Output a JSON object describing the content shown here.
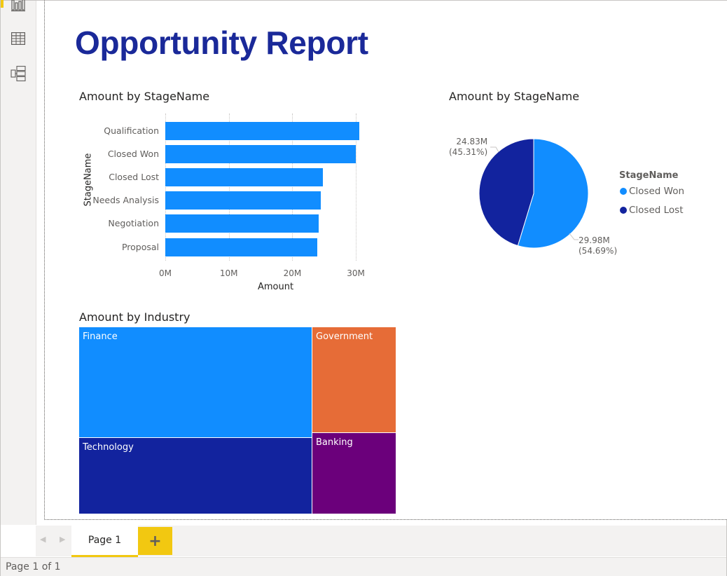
{
  "report": {
    "title": "Opportunity Report"
  },
  "rail": {
    "items": [
      {
        "name": "report-view",
        "icon": "bar-chart-icon",
        "active": true
      },
      {
        "name": "data-view",
        "icon": "table-grid-icon",
        "active": false
      },
      {
        "name": "model-view",
        "icon": "model-diagram-icon",
        "active": false
      }
    ]
  },
  "bar_chart": {
    "title": "Amount by StageName",
    "y_axis_title": "StageName",
    "x_axis_title": "Amount",
    "x_ticks": [
      "0M",
      "10M",
      "20M",
      "30M"
    ],
    "bar_color": "#118dff"
  },
  "pie_chart": {
    "title": "Amount by StageName",
    "legend_title": "StageName",
    "slices": [
      {
        "name": "Closed Won",
        "value_label": "29.98M",
        "pct_label": "(54.69%)",
        "color": "#118dff"
      },
      {
        "name": "Closed Lost",
        "value_label": "24.83M",
        "pct_label": "(45.31%)",
        "color": "#12239e"
      }
    ]
  },
  "treemap": {
    "title": "Amount by Industry",
    "tiles": [
      {
        "name": "Finance",
        "color": "#118dff"
      },
      {
        "name": "Technology",
        "color": "#12239e"
      },
      {
        "name": "Government",
        "color": "#e66c37"
      },
      {
        "name": "Banking",
        "color": "#6b007b"
      }
    ]
  },
  "chart_data": [
    {
      "type": "bar",
      "title": "Amount by StageName",
      "xlabel": "Amount",
      "ylabel": "StageName",
      "orientation": "horizontal",
      "categories": [
        "Qualification",
        "Closed Won",
        "Closed Lost",
        "Needs Analysis",
        "Negotiation",
        "Proposal"
      ],
      "values": [
        30.5,
        29.98,
        24.83,
        24.5,
        24.2,
        23.9
      ],
      "unit": "M",
      "xlim": [
        0,
        30
      ],
      "grid": true
    },
    {
      "type": "pie",
      "title": "Amount by StageName",
      "categories": [
        "Closed Won",
        "Closed Lost"
      ],
      "values": [
        29.98,
        24.83
      ],
      "percentages": [
        54.69,
        45.31
      ],
      "legend": "right"
    }
  ],
  "tabs": {
    "pages": [
      {
        "label": "Page 1",
        "active": true
      }
    ],
    "add_label": "+",
    "prev_arrow": "◀",
    "next_arrow": "▶"
  },
  "status": {
    "text": "Page 1 of 1"
  }
}
